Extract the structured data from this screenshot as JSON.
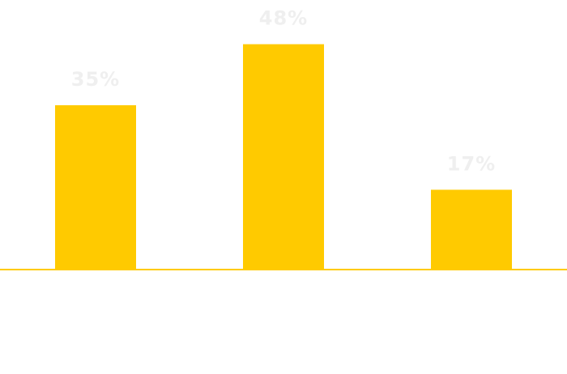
{
  "chart_data": {
    "type": "bar",
    "categories": [
      "",
      "",
      ""
    ],
    "values": [
      35,
      48,
      17
    ],
    "value_labels": [
      "35%",
      "48%",
      "17%"
    ],
    "ylim": [
      0,
      50
    ],
    "grid": false,
    "legend": "none"
  },
  "colors": {
    "bar": "#FFCA00",
    "axis": "#FFCA00",
    "label": "#EFEFEF"
  }
}
